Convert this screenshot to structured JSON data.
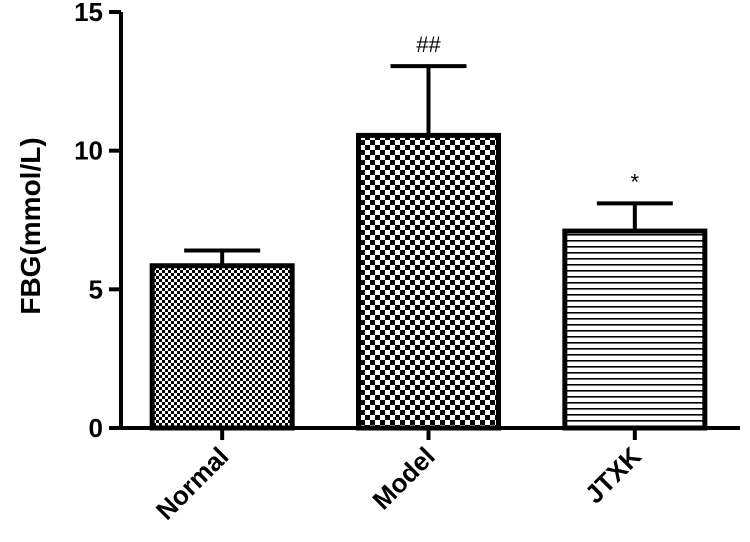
{
  "chart_data": {
    "type": "bar",
    "title": "",
    "xlabel": "",
    "ylabel": "FBG(mmol/L)",
    "ylim": [
      0,
      15
    ],
    "yticks": [
      0,
      5,
      10,
      15
    ],
    "grid": false,
    "categories": [
      "Normal",
      "Model",
      "JTXK"
    ],
    "values": [
      5.85,
      10.55,
      7.1
    ],
    "error": [
      0.55,
      2.5,
      1.0
    ],
    "patterns": [
      "fine-checker",
      "coarse-checker",
      "horizontal-lines"
    ],
    "annotations": [
      "",
      "##",
      "*"
    ],
    "colors": {
      "bar_fill": "#ffffff",
      "pattern": "#000000",
      "axis": "#000000"
    }
  }
}
